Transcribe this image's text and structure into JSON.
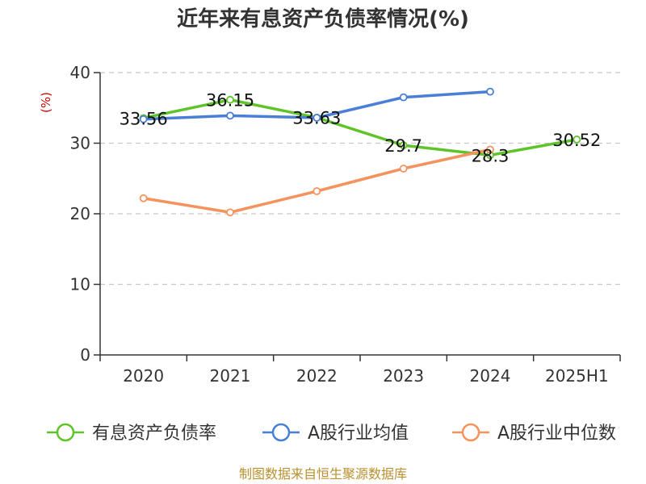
{
  "chart_data": {
    "type": "line",
    "title": "近年来有息资产负债率情况(%)",
    "ylabel": "(%)",
    "xlabel": "",
    "categories": [
      "2020",
      "2021",
      "2022",
      "2023",
      "2024",
      "2025H1"
    ],
    "ylim": [
      0,
      40
    ],
    "yticks": [
      0,
      10,
      20,
      30,
      40
    ],
    "grid": true,
    "legend_position": "bottom",
    "series": [
      {
        "name": "有息资产负债率",
        "color": "#5ec42a",
        "values": [
          33.56,
          36.15,
          33.63,
          29.7,
          28.3,
          30.52
        ],
        "labels": [
          "33.56",
          "36.15",
          "33.63",
          "29.7",
          "28.3",
          "30.52"
        ]
      },
      {
        "name": "A股行业均值",
        "color": "#4a7fd6",
        "values": [
          33.4,
          33.9,
          33.6,
          36.5,
          37.3,
          null
        ]
      },
      {
        "name": "A股行业中位数",
        "color": "#f5935e",
        "values": [
          22.2,
          20.2,
          23.2,
          26.4,
          29.1,
          null
        ]
      }
    ],
    "source": "制图数据来自恒生聚源数据库"
  }
}
